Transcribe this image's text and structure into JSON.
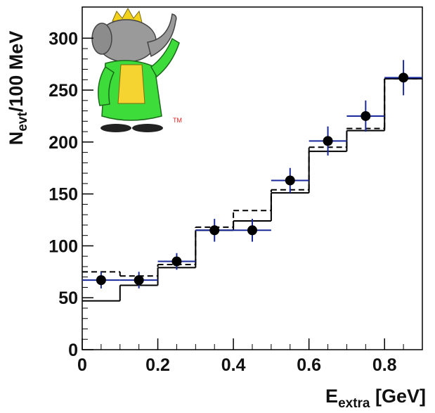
{
  "chart_data": {
    "type": "histogram",
    "bins": [
      0,
      0.1,
      0.2,
      0.3,
      0.4,
      0.5,
      0.6,
      0.7,
      0.8,
      0.9
    ],
    "series": [
      {
        "color": "#000000",
        "style": "solid",
        "values": [
          47,
          62,
          79,
          115,
          124,
          151,
          191,
          211,
          261
        ]
      },
      {
        "color": "#000000",
        "style": "dashed",
        "values": [
          75,
          71,
          82,
          118,
          134,
          154,
          195,
          213,
          261
        ]
      }
    ],
    "points": {
      "color": "#000000",
      "error_color": "#1a2a9a",
      "values": [
        67,
        67,
        85,
        115,
        115,
        163,
        201,
        225,
        262
      ],
      "errors": [
        8,
        8,
        8,
        11,
        11,
        12,
        14,
        15,
        17
      ]
    },
    "xlim": [
      0,
      0.9
    ],
    "ylim": [
      0,
      330
    ],
    "xticks": [
      0,
      0.2,
      0.4,
      0.6,
      0.8
    ],
    "yticks": [
      0,
      50,
      100,
      150,
      200,
      250,
      300
    ],
    "x_label": {
      "text": "E",
      "sub": "extra",
      "tail": " [GeV]"
    },
    "y_label": {
      "text": "N",
      "sub": "evt",
      "tail": "/100 MeV"
    },
    "logo_mark": "TM"
  }
}
